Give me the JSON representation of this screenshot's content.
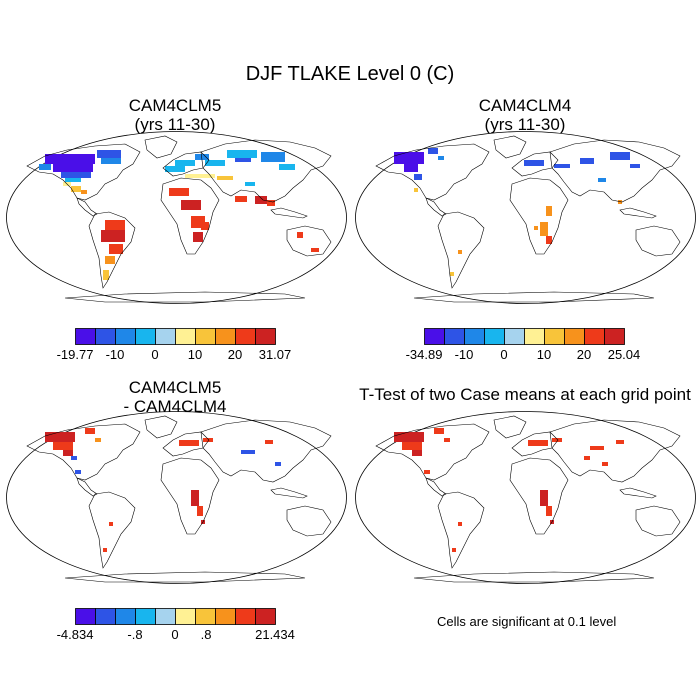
{
  "title": "DJF TLAKE Level 0 (C)",
  "colors": [
    "#4a0fe8",
    "#2e54e6",
    "#1f87e8",
    "#18b5ee",
    "#a6d3ee",
    "#fff194",
    "#f8c43a",
    "#f7921c",
    "#ee3a1a",
    "#cc2222"
  ],
  "chart_data": [
    {
      "type": "map",
      "panel": "top-left",
      "title_line1": "CAM4CLM5",
      "title_line2": "(yrs 11-30)",
      "colorbar": {
        "min": -19.77,
        "max": 31.07,
        "labels": [
          "-19.77",
          "-10",
          "0",
          "10",
          "20",
          "31.07"
        ],
        "levels": 10
      }
    },
    {
      "type": "map",
      "panel": "top-right",
      "title_line1": "CAM4CLM4",
      "title_line2": "(yrs 11-30)",
      "colorbar": {
        "min": -34.89,
        "max": 25.04,
        "labels": [
          "-34.89",
          "-10",
          "0",
          "10",
          "20",
          "25.04"
        ],
        "levels": 10
      }
    },
    {
      "type": "map",
      "panel": "bottom-left",
      "title_line1": "CAM4CLM5",
      "title_line2": "- CAM4CLM4",
      "colorbar": {
        "min": -4.834,
        "max": 21.434,
        "labels": [
          "-4.834",
          "-.8",
          "0",
          ".8",
          "21.434"
        ],
        "levels": 10
      }
    },
    {
      "type": "map",
      "panel": "bottom-right",
      "title_line1": "T-Test of two Case means at each grid point",
      "note": "Cells are significant at 0.1 level"
    }
  ]
}
